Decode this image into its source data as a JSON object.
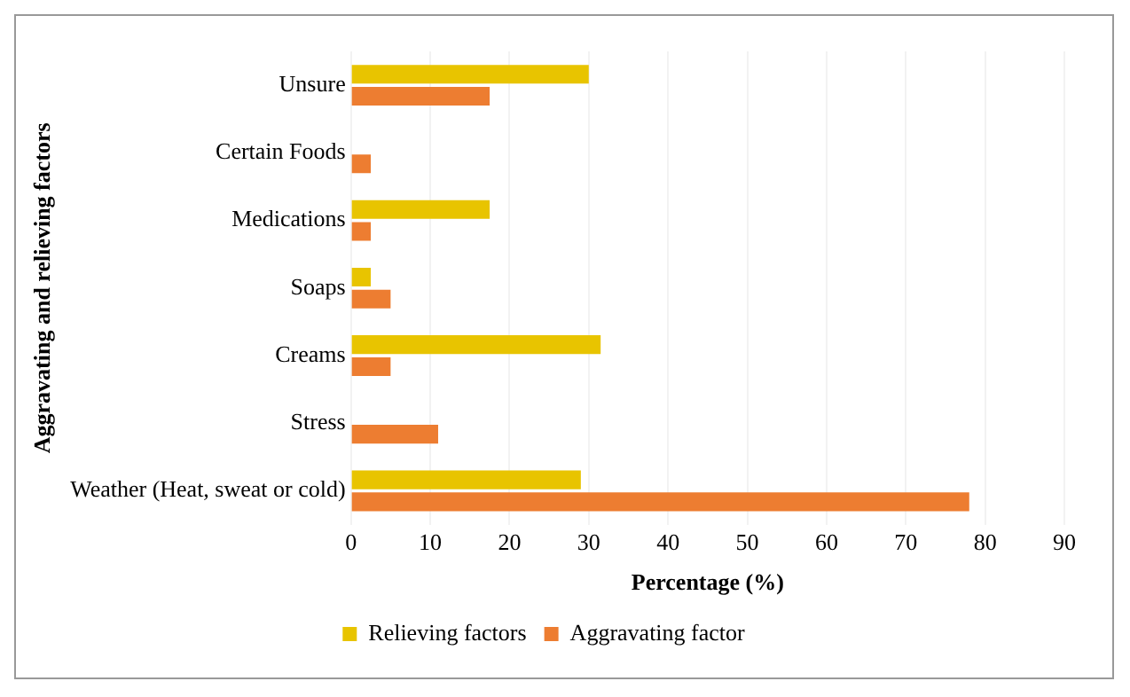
{
  "chart_data": {
    "type": "bar",
    "orientation": "horizontal",
    "xlabel": "Percentage (%)",
    "ylabel": "Aggravating and relieving factors",
    "categories": [
      "Unsure",
      "Certain Foods",
      "Medications",
      "Soaps",
      "Creams",
      "Stress",
      "Weather (Heat, sweat or cold)"
    ],
    "series": [
      {
        "name": "Relieving factors",
        "color": "#e8c400",
        "values": [
          30,
          null,
          17.5,
          2.5,
          31.5,
          null,
          29
        ]
      },
      {
        "name": "Aggravating factor",
        "color": "#ed7d31",
        "values": [
          17.5,
          2.5,
          2.5,
          5,
          5,
          11,
          78
        ]
      }
    ],
    "xlim": [
      0,
      90
    ],
    "xticks": [
      0,
      10,
      20,
      30,
      40,
      50,
      60,
      70,
      80,
      90
    ],
    "grid": "x",
    "legend": "bottom"
  }
}
